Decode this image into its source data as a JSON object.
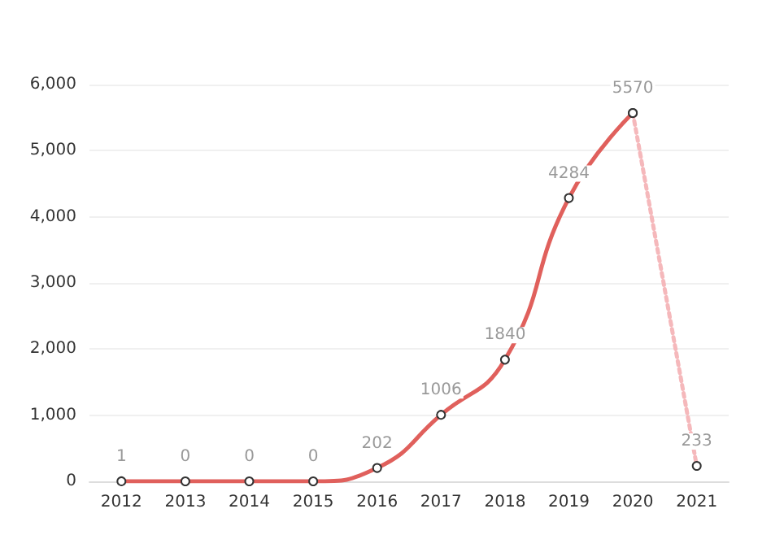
{
  "chart_data": {
    "type": "line",
    "categories": [
      "2012",
      "2013",
      "2014",
      "2015",
      "2016",
      "2017",
      "2018",
      "2019",
      "2020",
      "2021"
    ],
    "series": [
      {
        "color": "#e0605c",
        "line_style": "solid",
        "values": [
          1,
          0,
          0,
          0,
          202,
          1006,
          1840,
          4284,
          5570,
          null
        ],
        "value_labels": [
          "1",
          "0",
          "0",
          "0",
          "202",
          "1006",
          "1840",
          "4284",
          "5570",
          null
        ]
      },
      {
        "color": "#f5b8bb",
        "line_style": "dotted",
        "values": [
          null,
          null,
          null,
          null,
          null,
          null,
          null,
          null,
          5570,
          233
        ],
        "value_labels": [
          null,
          null,
          null,
          null,
          null,
          null,
          null,
          null,
          null,
          "233"
        ]
      }
    ],
    "ylim": [
      0,
      6000
    ],
    "yticks": [
      {
        "value": 0,
        "label": "0"
      },
      {
        "value": 1000,
        "label": "1,000"
      },
      {
        "value": 2000,
        "label": "2,000"
      },
      {
        "value": 3000,
        "label": "3,000"
      },
      {
        "value": 4000,
        "label": "4,000"
      },
      {
        "value": 5000,
        "label": "5,000"
      },
      {
        "value": 6000,
        "label": "6,000"
      }
    ],
    "grid": "y",
    "marker": "circle"
  }
}
